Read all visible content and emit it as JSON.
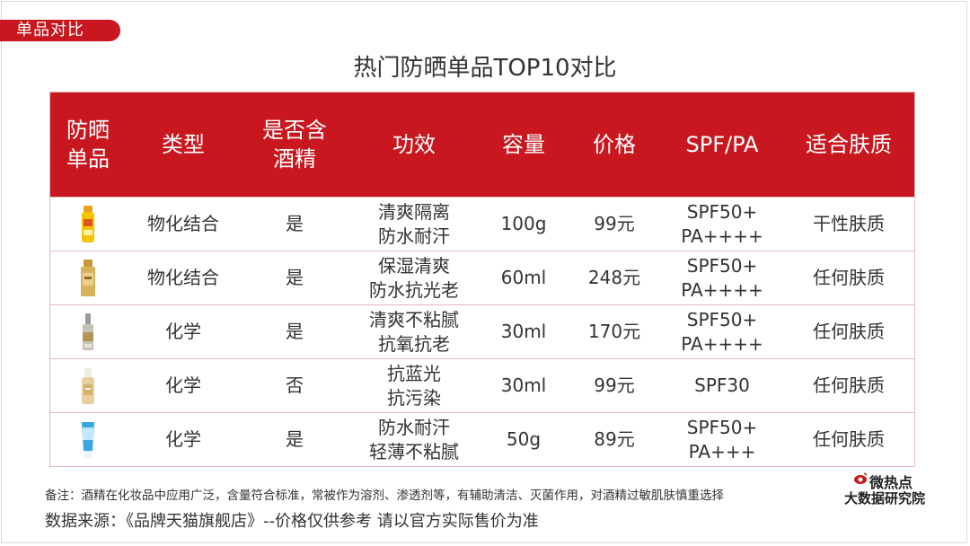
{
  "section_tag": "单品对比",
  "title": "热门防晒单品TOP10对比",
  "table": {
    "headers": [
      [
        "防晒",
        "单品"
      ],
      [
        "类型"
      ],
      [
        "是否含",
        "酒精"
      ],
      [
        "功效"
      ],
      [
        "容量"
      ],
      [
        "价格"
      ],
      [
        "SPF/PA"
      ],
      [
        "适合肤质"
      ]
    ],
    "rows": [
      {
        "product_icon": "yellow-sunscreen-bottle-icon",
        "type": "物化结合",
        "alcohol": "是",
        "effect": [
          "清爽隔离",
          "防水耐汗"
        ],
        "volume": "100g",
        "price": "99元",
        "spf": [
          "SPF50+",
          "PA++++"
        ],
        "skin": "干性肤质"
      },
      {
        "product_icon": "gold-sunscreen-bottle-icon",
        "type": "物化结合",
        "alcohol": "是",
        "effect": [
          "保湿清爽",
          "防水抗光老"
        ],
        "volume": "60ml",
        "price": "248元",
        "spf": [
          "SPF50+",
          "PA++++"
        ],
        "skin": "任何肤质"
      },
      {
        "product_icon": "silver-serum-bottle-icon",
        "type": "化学",
        "alcohol": "是",
        "effect": [
          "清爽不粘腻",
          "抗氧抗老"
        ],
        "volume": "30ml",
        "price": "170元",
        "spf": [
          "SPF50+",
          "PA++++"
        ],
        "skin": "任何肤质"
      },
      {
        "product_icon": "cream-sunscreen-bottle-icon",
        "type": "化学",
        "alcohol": "否",
        "effect": [
          "抗蓝光",
          "抗污染"
        ],
        "volume": "30ml",
        "price": "99元",
        "spf": [
          "SPF30"
        ],
        "skin": "任何肤质"
      },
      {
        "product_icon": "blue-sunscreen-tube-icon",
        "type": "化学",
        "alcohol": "是",
        "effect": [
          "防水耐汗",
          "轻薄不粘腻"
        ],
        "volume": "50g",
        "price": "89元",
        "spf": [
          "SPF50+",
          "PA+++"
        ],
        "skin": "任何肤质"
      }
    ]
  },
  "note": "备注：酒精在化妆品中应用广泛，含量符合标准，常被作为溶剂、渗透剂等，有辅助清洁、灭菌作用，对酒精过敏肌肤慎重选择",
  "source": "数据来源：《品牌天猫旗舰店》--价格仅供参考  请以官方实际售价为准",
  "logo": {
    "line1": "微热点",
    "line2": "大数据研究院"
  },
  "colors": {
    "accent": "#c8171e",
    "border": "#e4b9bb"
  }
}
